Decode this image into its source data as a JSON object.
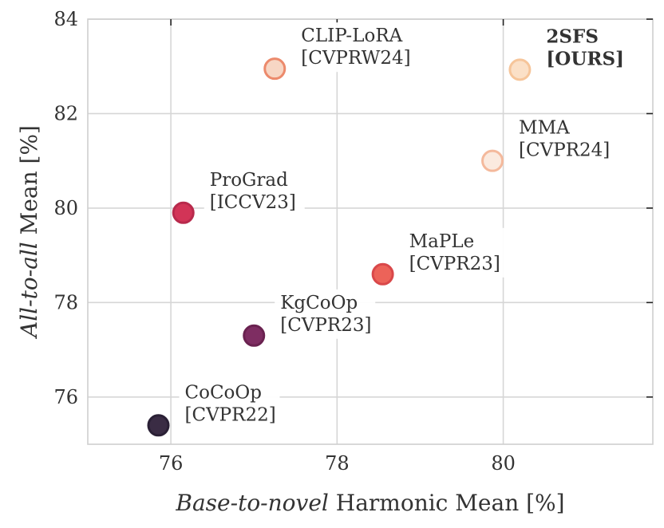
{
  "chart_data": {
    "type": "scatter",
    "xlabel": {
      "italic": "Base-to-novel",
      "rest": " Harmonic Mean [%]"
    },
    "ylabel": {
      "italic": "All-to-all",
      "rest": " Mean [%]"
    },
    "xlim": [
      75.0,
      81.8
    ],
    "ylim": [
      75.0,
      84.0
    ],
    "xticks": [
      76,
      78,
      80
    ],
    "yticks": [
      76,
      78,
      80,
      82,
      84
    ],
    "grid": true,
    "points": [
      {
        "name": "CoCoOp",
        "venue": "[CVPR22]",
        "x": 75.85,
        "y": 75.4,
        "color": "#3a2c44",
        "label_pos": "upper-right",
        "bold": false
      },
      {
        "name": "KgCoOp",
        "venue": "[CVPR23]",
        "x": 77.0,
        "y": 77.3,
        "color": "#7e2d62",
        "label_pos": "upper-right",
        "bold": false
      },
      {
        "name": "ProGrad",
        "venue": "[ICCV23]",
        "x": 76.15,
        "y": 79.9,
        "color": "#d23457",
        "label_pos": "upper-right",
        "bold": false
      },
      {
        "name": "MaPLe",
        "venue": "[CVPR23]",
        "x": 78.55,
        "y": 78.6,
        "color": "#ec6359",
        "label_pos": "upper-right",
        "bold": false
      },
      {
        "name": "CLIP-LoRA",
        "venue": "[CVPRW24]",
        "x": 77.25,
        "y": 82.95,
        "color": "#f7d6c4",
        "label_pos": "upper-right",
        "bold": false
      },
      {
        "name": "MMA",
        "venue": "[CVPR24]",
        "x": 79.87,
        "y": 81.0,
        "color": "#fbeadf",
        "label_pos": "upper-right",
        "bold": false
      },
      {
        "name": "2SFS",
        "venue": "[OURS]",
        "x": 80.2,
        "y": 82.93,
        "color": "#fbe0c7",
        "label_pos": "upper-right",
        "bold": true
      }
    ],
    "edge_colors": {
      "CoCoOp": "#2a2035",
      "KgCoOp": "#6a2250",
      "ProGrad": "#b82a4c",
      "MaPLe": "#d9484a",
      "CLIP-LoRA": "#ec8a6c",
      "MMA": "#f4b99c",
      "2SFS": "#f6c59a"
    }
  }
}
